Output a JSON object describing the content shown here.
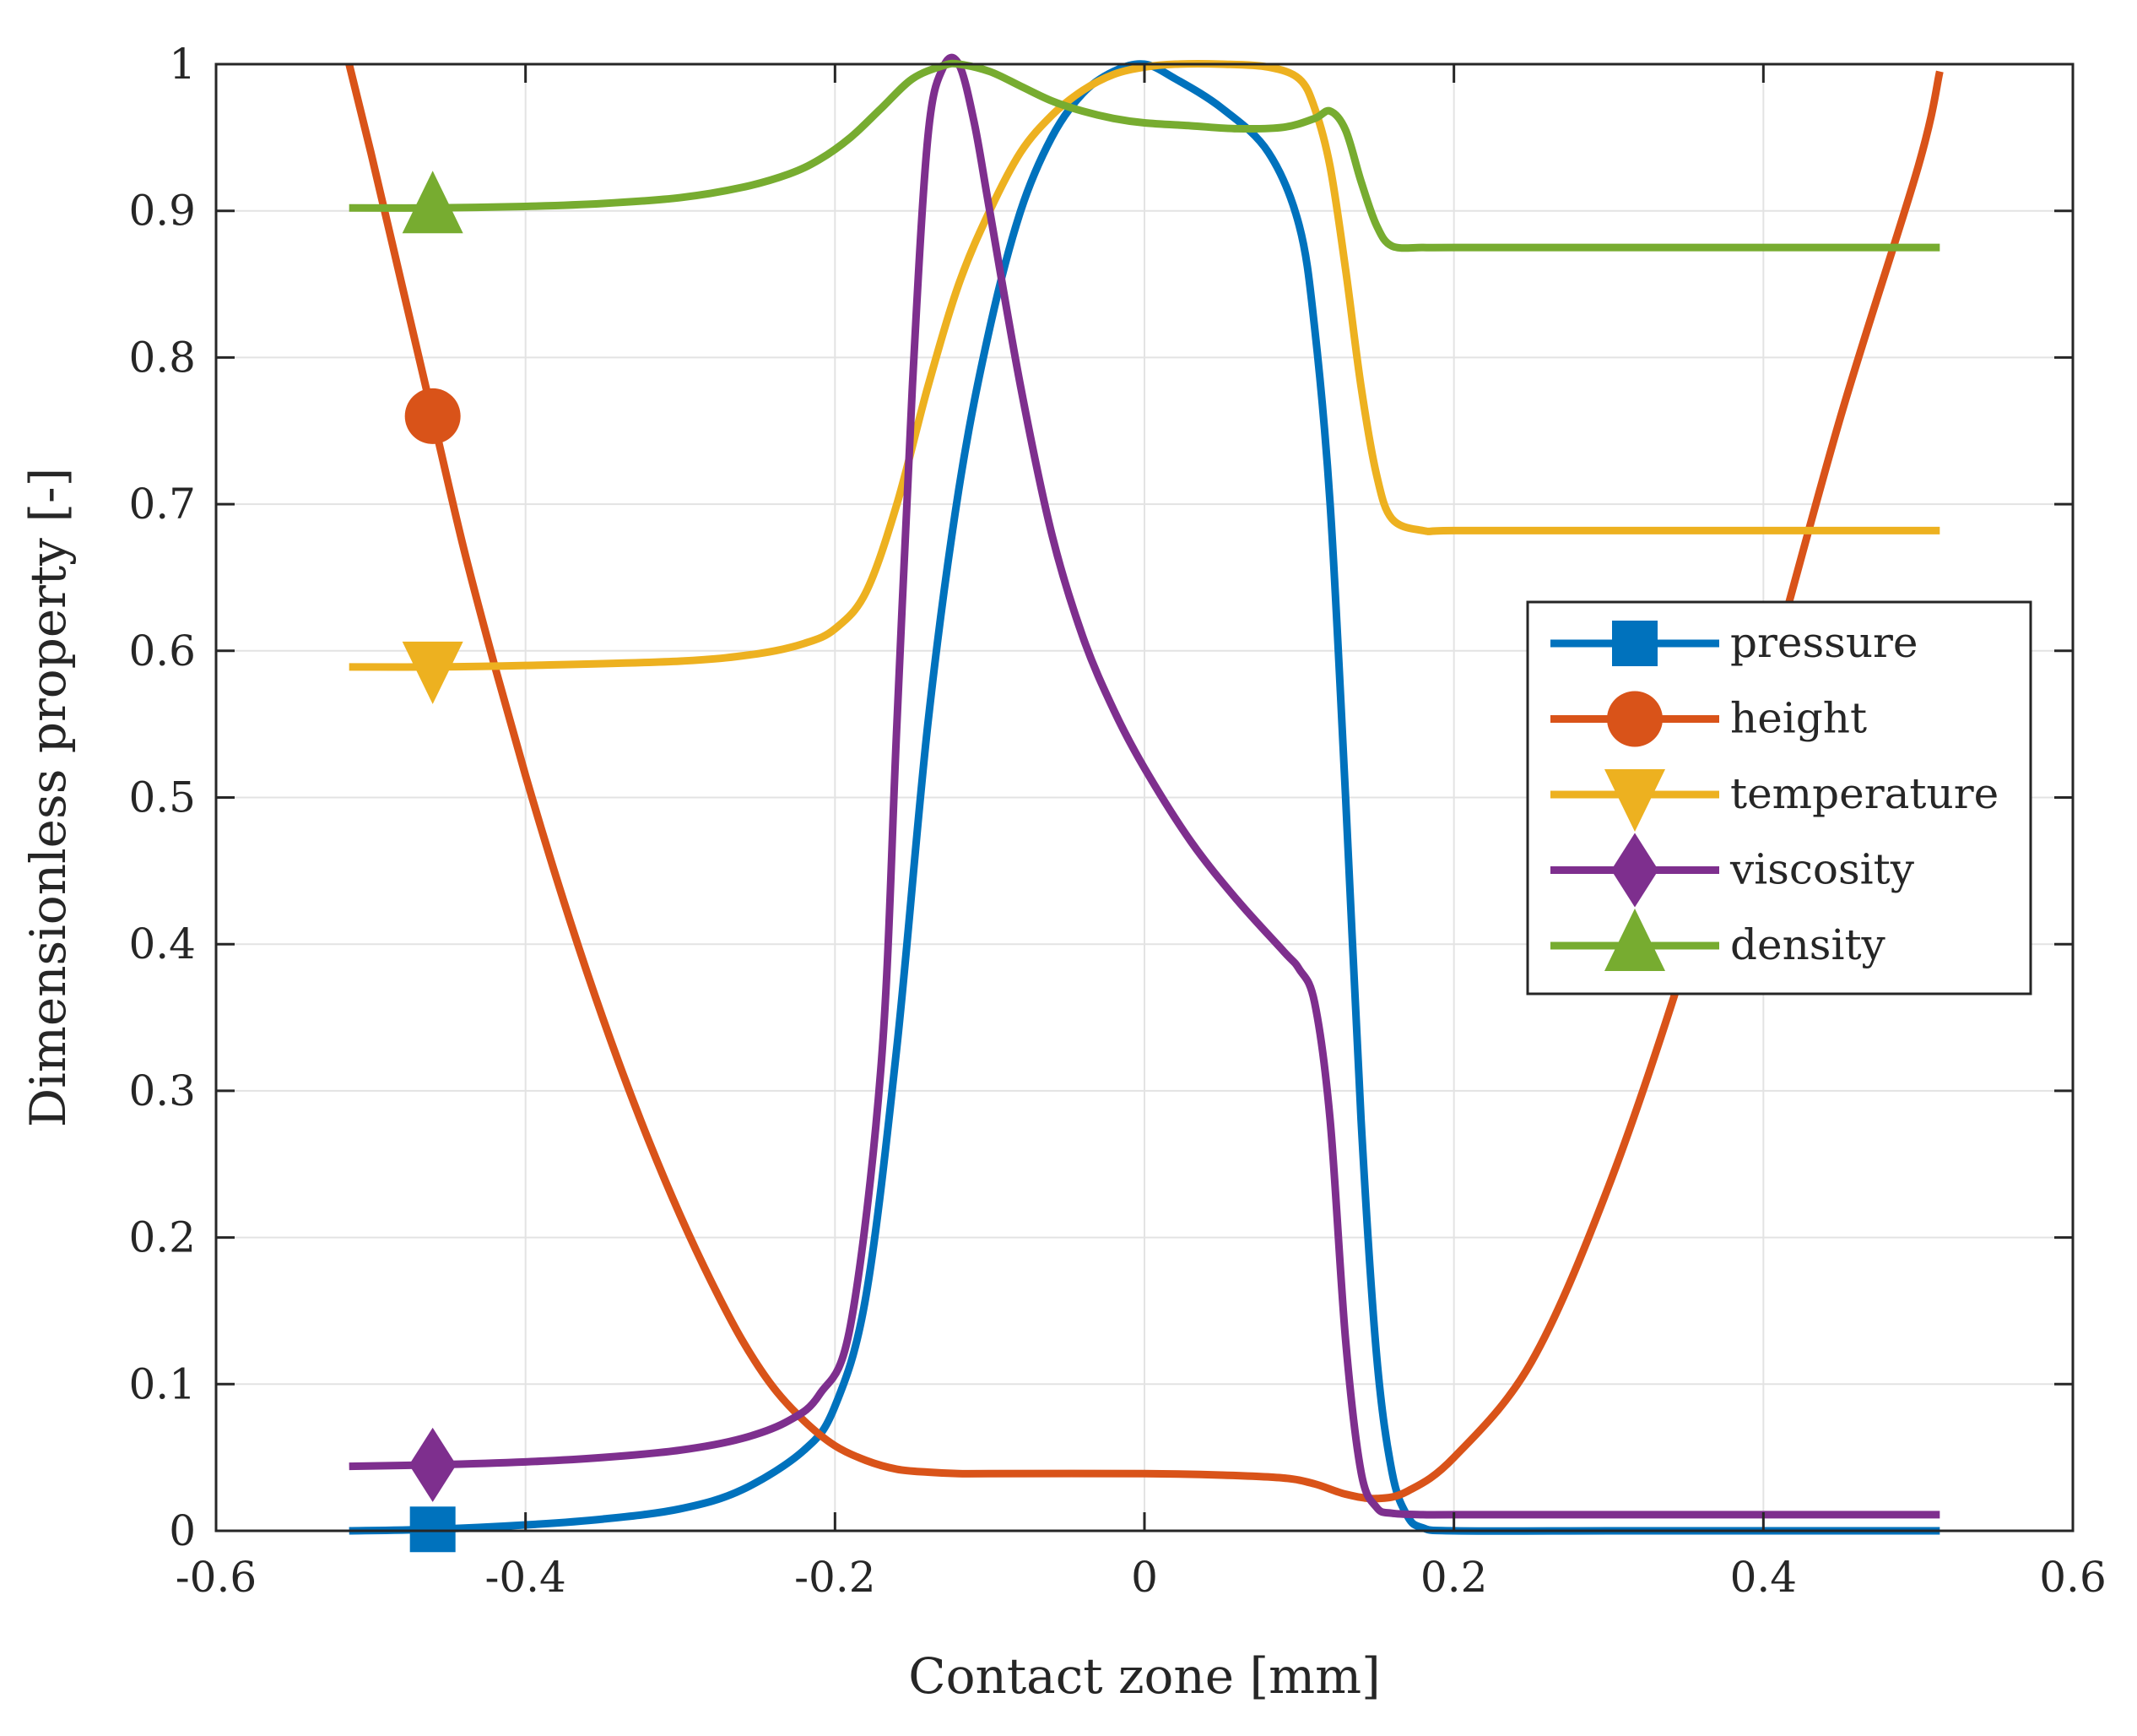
{
  "chart_data": {
    "type": "line",
    "title": "",
    "xlabel": "Contact zone [mm]",
    "ylabel": "Dimensionless property [-]",
    "xlim": [
      -0.6,
      0.6
    ],
    "ylim": [
      0,
      1
    ],
    "xticks": [
      -0.6,
      -0.4,
      -0.2,
      0,
      0.2,
      0.4,
      0.6
    ],
    "xtick_labels": [
      "-0.6",
      "-0.4",
      "-0.2",
      "0",
      "0.2",
      "0.4",
      "0.6"
    ],
    "yticks": [
      0,
      0.1,
      0.2,
      0.3,
      0.4,
      0.5,
      0.6,
      0.7,
      0.8,
      0.9,
      1
    ],
    "ytick_labels": [
      "0",
      "0.1",
      "0.2",
      "0.3",
      "0.4",
      "0.5",
      "0.6",
      "0.7",
      "0.8",
      "0.9",
      "1"
    ],
    "grid": true,
    "legend_position": "center-right",
    "marker_x": -0.46,
    "series": [
      {
        "name": "pressure",
        "color": "#0072BD",
        "marker": "square",
        "x": [
          -0.514,
          -0.46,
          -0.4,
          -0.35,
          -0.3,
          -0.26,
          -0.22,
          -0.2,
          -0.18,
          -0.16,
          -0.14,
          -0.12,
          -0.1,
          -0.08,
          -0.06,
          -0.04,
          -0.02,
          0,
          0.02,
          0.05,
          0.08,
          0.1,
          0.11,
          0.12,
          0.13,
          0.14,
          0.15,
          0.16,
          0.17,
          0.18,
          0.2,
          0.3,
          0.4,
          0.514
        ],
        "y": [
          0,
          0.001,
          0.004,
          0.008,
          0.015,
          0.028,
          0.055,
          0.085,
          0.16,
          0.33,
          0.55,
          0.71,
          0.82,
          0.9,
          0.95,
          0.98,
          0.995,
          1,
          0.99,
          0.97,
          0.94,
          0.89,
          0.82,
          0.7,
          0.5,
          0.28,
          0.12,
          0.04,
          0.01,
          0.002,
          0,
          0,
          0,
          0
        ]
      },
      {
        "name": "height",
        "color": "#D95319",
        "marker": "circle",
        "x": [
          -0.514,
          -0.5,
          -0.48,
          -0.46,
          -0.44,
          -0.42,
          -0.4,
          -0.38,
          -0.36,
          -0.34,
          -0.32,
          -0.3,
          -0.28,
          -0.26,
          -0.24,
          -0.22,
          -0.2,
          -0.18,
          -0.16,
          -0.14,
          -0.12,
          -0.1,
          0,
          0.05,
          0.09,
          0.11,
          0.13,
          0.15,
          0.17,
          0.2,
          0.25,
          0.3,
          0.35,
          0.4,
          0.45,
          0.5,
          0.514
        ],
        "y": [
          1.0,
          0.94,
          0.85,
          0.76,
          0.67,
          0.59,
          0.515,
          0.445,
          0.38,
          0.32,
          0.265,
          0.215,
          0.17,
          0.13,
          0.098,
          0.075,
          0.058,
          0.048,
          0.042,
          0.04,
          0.039,
          0.039,
          0.039,
          0.038,
          0.036,
          0.032,
          0.025,
          0.022,
          0.027,
          0.05,
          0.115,
          0.235,
          0.39,
          0.57,
          0.76,
          0.93,
          0.995
        ]
      },
      {
        "name": "temperature",
        "color": "#EDB120",
        "marker": "triangle-down",
        "x": [
          -0.514,
          -0.46,
          -0.4,
          -0.3,
          -0.25,
          -0.22,
          -0.2,
          -0.18,
          -0.16,
          -0.14,
          -0.12,
          -0.1,
          -0.08,
          -0.06,
          -0.04,
          -0.02,
          0,
          0.02,
          0.05,
          0.08,
          0.1,
          0.11,
          0.12,
          0.13,
          0.14,
          0.15,
          0.16,
          0.18,
          0.2,
          0.3,
          0.4,
          0.514
        ],
        "y": [
          0.589,
          0.589,
          0.59,
          0.593,
          0.598,
          0.605,
          0.615,
          0.64,
          0.7,
          0.78,
          0.85,
          0.9,
          0.94,
          0.965,
          0.982,
          0.993,
          0.998,
          1,
          1,
          0.998,
          0.99,
          0.97,
          0.93,
          0.86,
          0.78,
          0.72,
          0.69,
          0.682,
          0.682,
          0.682,
          0.682,
          0.682
        ]
      },
      {
        "name": "viscosity",
        "color": "#7E2F8E",
        "marker": "diamond",
        "x": [
          -0.514,
          -0.46,
          -0.4,
          -0.35,
          -0.3,
          -0.26,
          -0.23,
          -0.21,
          -0.19,
          -0.17,
          -0.16,
          -0.15,
          -0.14,
          -0.13,
          -0.12,
          -0.11,
          -0.1,
          -0.08,
          -0.06,
          -0.04,
          -0.02,
          0,
          0.03,
          0.06,
          0.09,
          0.1,
          0.11,
          0.12,
          0.13,
          0.14,
          0.15,
          0.16,
          0.18,
          0.2,
          0.3,
          0.4,
          0.514
        ],
        "y": [
          0.044,
          0.045,
          0.047,
          0.05,
          0.055,
          0.063,
          0.075,
          0.093,
          0.14,
          0.32,
          0.55,
          0.78,
          0.95,
          0.998,
          1.0,
          0.96,
          0.9,
          0.78,
          0.68,
          0.61,
          0.56,
          0.52,
          0.47,
          0.43,
          0.395,
          0.383,
          0.36,
          0.28,
          0.13,
          0.04,
          0.016,
          0.012,
          0.011,
          0.011,
          0.011,
          0.011,
          0.011
        ]
      },
      {
        "name": "density",
        "color": "#77AC30",
        "marker": "triangle-up",
        "x": [
          -0.514,
          -0.46,
          -0.4,
          -0.35,
          -0.3,
          -0.26,
          -0.23,
          -0.21,
          -0.19,
          -0.17,
          -0.15,
          -0.13,
          -0.12,
          -0.1,
          -0.08,
          -0.06,
          -0.04,
          -0.02,
          0,
          0.03,
          0.06,
          0.09,
          0.11,
          0.12,
          0.13,
          0.14,
          0.15,
          0.16,
          0.18,
          0.2,
          0.3,
          0.4,
          0.514
        ],
        "y": [
          0.902,
          0.902,
          0.903,
          0.905,
          0.909,
          0.916,
          0.925,
          0.935,
          0.95,
          0.97,
          0.99,
          0.999,
          1.0,
          0.995,
          0.985,
          0.975,
          0.968,
          0.963,
          0.96,
          0.958,
          0.956,
          0.957,
          0.963,
          0.968,
          0.955,
          0.92,
          0.89,
          0.876,
          0.875,
          0.875,
          0.875,
          0.875,
          0.875
        ]
      }
    ]
  }
}
